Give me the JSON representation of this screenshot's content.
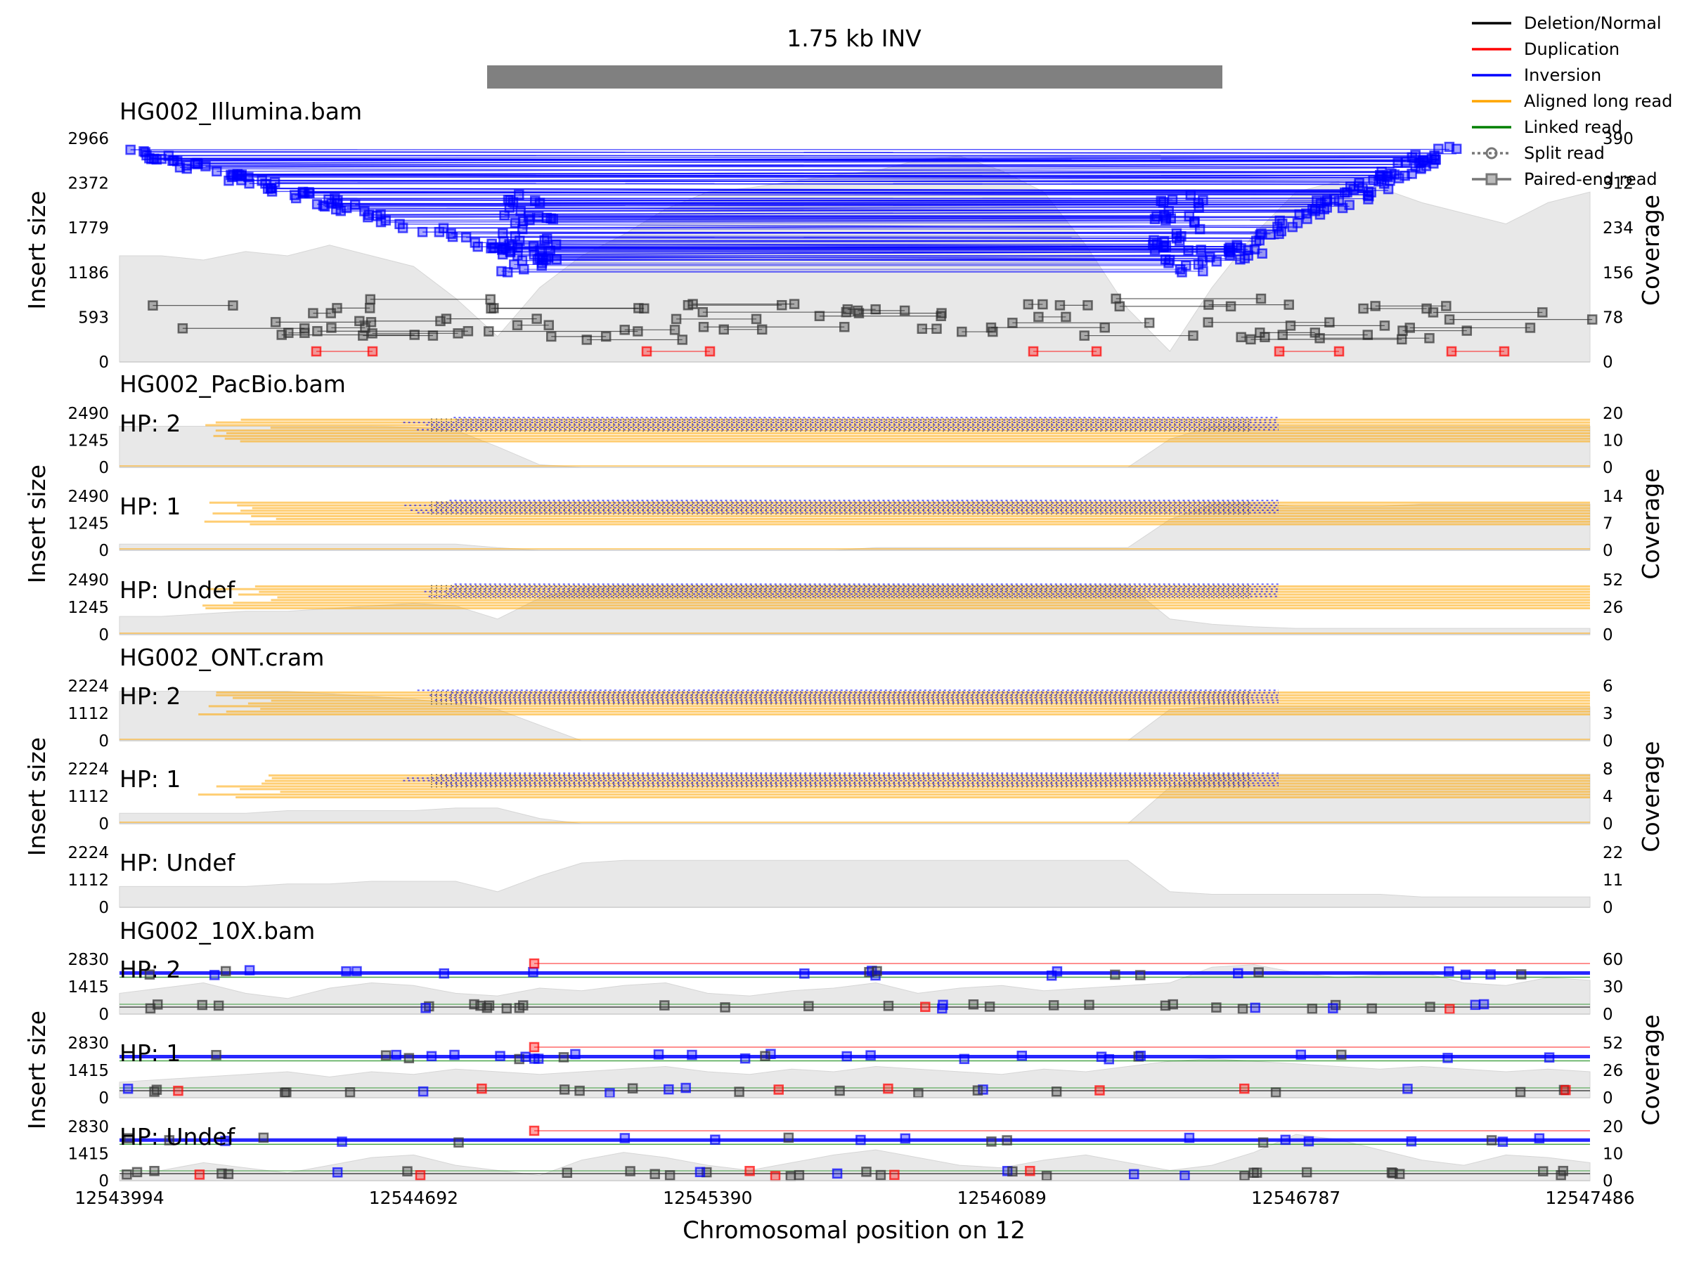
{
  "chart_data": {
    "type": "genomic-track",
    "title": "1.75 kb INV",
    "xlabel": "Chromosomal position on 12",
    "x_range": [
      12543994,
      12547486
    ],
    "x_ticks": [
      "12543994",
      "12544692",
      "12545390",
      "12546089",
      "12546787",
      "12547486"
    ],
    "sv_interval": [
      12544867,
      12546613
    ],
    "left_axis_label": "Insert size",
    "right_axis_label": "Coverage",
    "legend": {
      "position": "top-right",
      "entries": [
        {
          "label": "Deletion/Normal",
          "color": "#000000",
          "style": "line"
        },
        {
          "label": "Duplication",
          "color": "#ff0000",
          "style": "line"
        },
        {
          "label": "Inversion",
          "color": "#0000ff",
          "style": "line"
        },
        {
          "label": "Aligned long read",
          "color": "#ffa500",
          "style": "line"
        },
        {
          "label": "Linked read",
          "color": "#008000",
          "style": "line"
        },
        {
          "label": "Split read",
          "color": "#777777",
          "style": "dotted-circle"
        },
        {
          "label": "Paired-end read",
          "color": "#777777",
          "style": "square"
        }
      ]
    },
    "colors": {
      "deletion": "#000000",
      "duplication": "#ff0000",
      "inversion": "#0000ff",
      "aligned_long_read": "#ffa500",
      "linked_read": "#008000",
      "coverage_fill": "#e8e8e8"
    },
    "samples": [
      {
        "name": "HG002_Illumina.bam",
        "tracks": [
          {
            "hp": "",
            "kind": "paired",
            "yticks": [
              "0",
              "593",
              "1186",
              "1779",
              "2372",
              "2966"
            ],
            "yticks_right": [
              "0",
              "78",
              "156",
              "234",
              "312",
              "390"
            ],
            "coverage": [
              0.5,
              0.5,
              0.48,
              0.52,
              0.5,
              0.55,
              0.5,
              0.45,
              0.3,
              0.12,
              0.35,
              0.5,
              0.6,
              0.72,
              0.8,
              0.82,
              0.85,
              0.88,
              0.9,
              0.95,
              0.97,
              0.9,
              0.8,
              0.55,
              0.25,
              0.05,
              0.35,
              0.6,
              0.8,
              0.85,
              0.82,
              0.75,
              0.7,
              0.65,
              0.75,
              0.8
            ]
          }
        ]
      },
      {
        "name": "HG002_PacBio.bam",
        "tracks": [
          {
            "hp": "HP: 2",
            "kind": "long",
            "yticks": [
              "0",
              "1245",
              "2490"
            ],
            "yticks_right": [
              "0",
              "10",
              "20"
            ],
            "coverage": [
              0.8,
              0.8,
              0.8,
              0.8,
              0.8,
              0.8,
              0.8,
              0.78,
              0.72,
              0.4,
              0.05,
              0.0,
              0.0,
              0.0,
              0.0,
              0.0,
              0.0,
              0.0,
              0.0,
              0.0,
              0.0,
              0.0,
              0.0,
              0.0,
              0.0,
              0.55,
              0.8,
              0.8,
              0.8,
              0.8,
              0.8,
              0.8,
              0.8,
              0.8,
              0.8,
              0.8
            ]
          },
          {
            "hp": "HP: 1",
            "kind": "long",
            "yticks": [
              "0",
              "1245",
              "2490"
            ],
            "yticks_right": [
              "0",
              "7",
              "14"
            ],
            "coverage": [
              0.12,
              0.12,
              0.12,
              0.12,
              0.12,
              0.12,
              0.12,
              0.12,
              0.12,
              0.05,
              0.0,
              0.0,
              0.0,
              0.0,
              0.0,
              0.0,
              0.0,
              0.0,
              0.05,
              0.05,
              0.05,
              0.05,
              0.05,
              0.05,
              0.05,
              0.6,
              0.9,
              0.9,
              0.85,
              0.85,
              0.85,
              0.9,
              0.9,
              0.9,
              0.9,
              0.9
            ]
          },
          {
            "hp": "HP: Undef",
            "kind": "long",
            "yticks": [
              "0",
              "1245",
              "2490"
            ],
            "yticks_right": [
              "0",
              "26",
              "52"
            ],
            "coverage": [
              0.35,
              0.35,
              0.4,
              0.45,
              0.45,
              0.5,
              0.55,
              0.6,
              0.55,
              0.3,
              0.7,
              0.9,
              0.95,
              0.95,
              0.95,
              0.95,
              0.95,
              0.95,
              0.95,
              0.95,
              0.95,
              0.95,
              0.95,
              0.95,
              0.95,
              0.3,
              0.2,
              0.15,
              0.12,
              0.12,
              0.12,
              0.12,
              0.12,
              0.12,
              0.12,
              0.12
            ]
          }
        ]
      },
      {
        "name": "HG002_ONT.cram",
        "tracks": [
          {
            "hp": "HP: 2",
            "kind": "long",
            "yticks": [
              "0",
              "1112",
              "2224"
            ],
            "yticks_right": [
              "0",
              "3",
              "6"
            ],
            "coverage": [
              0.95,
              0.95,
              0.95,
              0.95,
              0.95,
              0.9,
              0.85,
              0.8,
              0.7,
              0.6,
              0.3,
              0.0,
              0.0,
              0.0,
              0.0,
              0.0,
              0.0,
              0.0,
              0.0,
              0.0,
              0.0,
              0.0,
              0.0,
              0.0,
              0.0,
              0.6,
              0.65,
              0.65,
              0.65,
              0.65,
              0.65,
              0.65,
              0.65,
              0.65,
              0.65,
              0.65
            ]
          },
          {
            "hp": "HP: 1",
            "kind": "long",
            "yticks": [
              "0",
              "1112",
              "2224"
            ],
            "yticks_right": [
              "0",
              "4",
              "8"
            ],
            "coverage": [
              0.2,
              0.2,
              0.2,
              0.2,
              0.25,
              0.25,
              0.25,
              0.25,
              0.3,
              0.3,
              0.1,
              0.0,
              0.0,
              0.0,
              0.0,
              0.0,
              0.0,
              0.0,
              0.0,
              0.0,
              0.0,
              0.0,
              0.0,
              0.0,
              0.0,
              0.7,
              0.95,
              0.95,
              0.95,
              0.95,
              0.95,
              0.95,
              0.95,
              0.95,
              0.95,
              0.95
            ]
          },
          {
            "hp": "HP: Undef",
            "kind": "none",
            "yticks": [
              "0",
              "1112",
              "2224"
            ],
            "yticks_right": [
              "0",
              "11",
              "22"
            ],
            "coverage": [
              0.4,
              0.4,
              0.4,
              0.4,
              0.45,
              0.45,
              0.5,
              0.5,
              0.5,
              0.3,
              0.6,
              0.85,
              0.9,
              0.9,
              0.9,
              0.9,
              0.9,
              0.9,
              0.9,
              0.9,
              0.9,
              0.9,
              0.9,
              0.9,
              0.9,
              0.3,
              0.25,
              0.25,
              0.25,
              0.25,
              0.25,
              0.2,
              0.2,
              0.2,
              0.2,
              0.2
            ]
          }
        ]
      },
      {
        "name": "HG002_10X.bam",
        "tracks": [
          {
            "hp": "HP: 2",
            "kind": "paired10x",
            "yticks": [
              "0",
              "1415",
              "2830"
            ],
            "yticks_right": [
              "0",
              "30",
              "60"
            ],
            "coverage": [
              0.4,
              0.5,
              0.6,
              0.4,
              0.3,
              0.5,
              0.6,
              0.55,
              0.4,
              0.35,
              0.5,
              0.45,
              0.55,
              0.6,
              0.4,
              0.35,
              0.45,
              0.5,
              0.6,
              0.4,
              0.5,
              0.55,
              0.45,
              0.5,
              0.55,
              0.6,
              0.9,
              0.95,
              0.8,
              0.7,
              0.75,
              0.8,
              0.6,
              0.55,
              0.7,
              0.65
            ]
          },
          {
            "hp": "HP: 1",
            "kind": "paired10x",
            "yticks": [
              "0",
              "1415",
              "2830"
            ],
            "yticks_right": [
              "0",
              "26",
              "52"
            ],
            "coverage": [
              0.3,
              0.35,
              0.4,
              0.45,
              0.5,
              0.4,
              0.5,
              0.45,
              0.55,
              0.5,
              0.45,
              0.5,
              0.55,
              0.6,
              0.5,
              0.45,
              0.55,
              0.5,
              0.6,
              0.55,
              0.5,
              0.45,
              0.55,
              0.5,
              0.6,
              0.7,
              0.75,
              0.7,
              0.65,
              0.6,
              0.55,
              0.6,
              0.55,
              0.5,
              0.55,
              0.5
            ]
          },
          {
            "hp": "HP: Undef",
            "kind": "paired10x",
            "yticks": [
              "0",
              "1415",
              "2830"
            ],
            "yticks_right": [
              "0",
              "10",
              "20"
            ],
            "coverage": [
              0.1,
              0.2,
              0.35,
              0.25,
              0.15,
              0.3,
              0.45,
              0.5,
              0.3,
              0.2,
              0.1,
              0.4,
              0.55,
              0.45,
              0.3,
              0.2,
              0.35,
              0.5,
              0.6,
              0.45,
              0.3,
              0.25,
              0.4,
              0.5,
              0.35,
              0.2,
              0.3,
              0.55,
              0.9,
              0.8,
              0.6,
              0.4,
              0.3,
              0.5,
              0.45,
              0.35
            ]
          }
        ]
      }
    ]
  }
}
